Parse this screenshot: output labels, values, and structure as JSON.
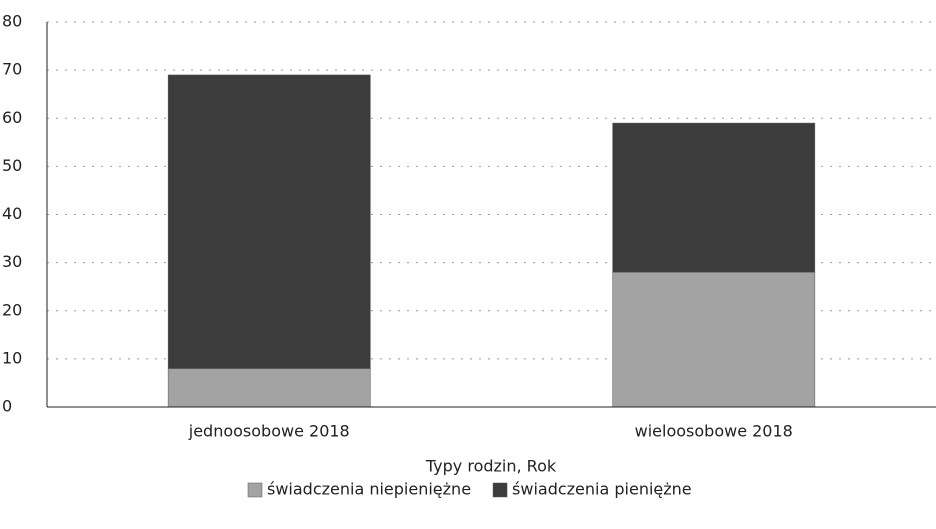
{
  "chart_data": {
    "type": "stacked_bar",
    "categories": [
      "jednoosobowe 2018",
      "wieloosobowe 2018"
    ],
    "series": [
      {
        "name": "świadczenia niepieniężne",
        "color": "#a3a3a3",
        "values": [
          8,
          28
        ]
      },
      {
        "name": "świadczenia pieniężne",
        "color": "#3c3c3c",
        "values": [
          61,
          31
        ]
      }
    ],
    "x_label": "Typy rodzin, Rok",
    "ylim": [
      0,
      80
    ],
    "yticks": [
      0,
      10,
      20,
      30,
      40,
      50,
      60,
      70,
      80
    ],
    "grid": true,
    "legend": "bottom"
  }
}
